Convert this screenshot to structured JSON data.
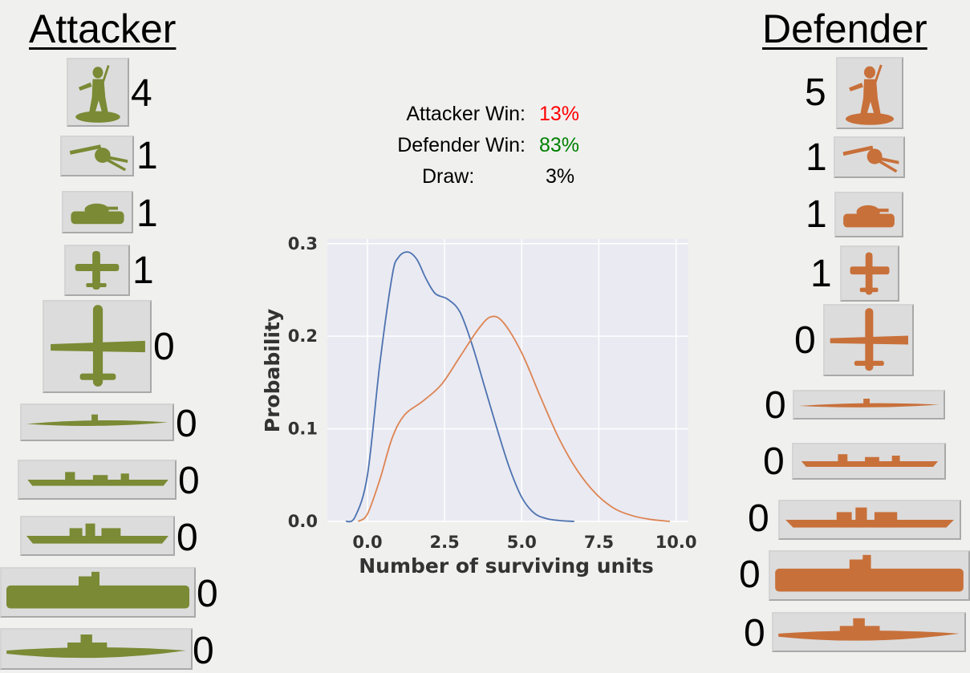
{
  "attacker": {
    "heading": "Attacker",
    "units": [
      {
        "icon": "infantry-icon",
        "count": "4"
      },
      {
        "icon": "artillery-icon",
        "count": "1"
      },
      {
        "icon": "tank-icon",
        "count": "1"
      },
      {
        "icon": "fighter-icon",
        "count": "1"
      },
      {
        "icon": "bomber-icon",
        "count": "0"
      },
      {
        "icon": "submarine-icon",
        "count": "0"
      },
      {
        "icon": "destroyer-icon",
        "count": "0"
      },
      {
        "icon": "cruiser-icon",
        "count": "0"
      },
      {
        "icon": "aircraft-carrier-icon",
        "count": "0"
      },
      {
        "icon": "battleship-icon",
        "count": "0"
      }
    ]
  },
  "defender": {
    "heading": "Defender",
    "units": [
      {
        "icon": "infantry-icon",
        "count": "5"
      },
      {
        "icon": "artillery-icon",
        "count": "1"
      },
      {
        "icon": "tank-icon",
        "count": "1"
      },
      {
        "icon": "fighter-icon",
        "count": "1"
      },
      {
        "icon": "bomber-icon",
        "count": "0"
      },
      {
        "icon": "submarine-icon",
        "count": "0"
      },
      {
        "icon": "destroyer-icon",
        "count": "0"
      },
      {
        "icon": "cruiser-icon",
        "count": "0"
      },
      {
        "icon": "aircraft-carrier-icon",
        "count": "0"
      },
      {
        "icon": "battleship-icon",
        "count": "0"
      }
    ]
  },
  "stats": {
    "attacker_win": {
      "label": "Attacker Win:",
      "value": "13%"
    },
    "defender_win": {
      "label": "Defender Win:",
      "value": "83%"
    },
    "draw": {
      "label": "Draw:",
      "value": "3%"
    }
  },
  "colors": {
    "attacker_unit": "#7a8a35",
    "defender_unit": "#c8703a",
    "attacker_win_value": "#ff0000",
    "defender_win_value": "#008000",
    "draw_value": "#000000",
    "plot_bg": "#eaeaf2",
    "attacker_series": "#4c72b0",
    "defender_series": "#dd8452"
  },
  "chart_data": {
    "type": "line",
    "title": "",
    "xlabel": "Number of surviving units",
    "ylabel": "Probability",
    "xlim": [
      -1.3,
      10.4
    ],
    "ylim": [
      0,
      0.305
    ],
    "xticks": [
      "0.0",
      "2.5",
      "5.0",
      "7.5",
      "10.0"
    ],
    "yticks": [
      "0.0",
      "0.1",
      "0.2",
      "0.3"
    ],
    "grid": true,
    "legend": "none",
    "series": [
      {
        "color": "#4c72b0",
        "x": [
          -0.7,
          -0.4,
          0.0,
          0.4,
          0.8,
          1.0,
          1.3,
          1.6,
          1.9,
          2.2,
          2.6,
          3.0,
          3.4,
          3.8,
          4.2,
          4.6,
          5.0,
          5.4,
          5.8,
          6.2,
          6.7
        ],
        "y": [
          0.0,
          0.005,
          0.05,
          0.17,
          0.265,
          0.285,
          0.291,
          0.283,
          0.262,
          0.246,
          0.24,
          0.226,
          0.19,
          0.145,
          0.1,
          0.058,
          0.026,
          0.009,
          0.003,
          0.001,
          0.0
        ]
      },
      {
        "color": "#dd8452",
        "x": [
          -0.3,
          0.0,
          0.4,
          0.8,
          1.2,
          1.8,
          2.4,
          3.0,
          3.6,
          4.0,
          4.4,
          5.0,
          5.6,
          6.2,
          6.8,
          7.4,
          8.0,
          8.6,
          9.2,
          9.8
        ],
        "y": [
          0.0,
          0.008,
          0.045,
          0.09,
          0.115,
          0.13,
          0.148,
          0.178,
          0.208,
          0.221,
          0.215,
          0.182,
          0.135,
          0.09,
          0.055,
          0.03,
          0.014,
          0.006,
          0.002,
          0.0
        ]
      }
    ]
  }
}
